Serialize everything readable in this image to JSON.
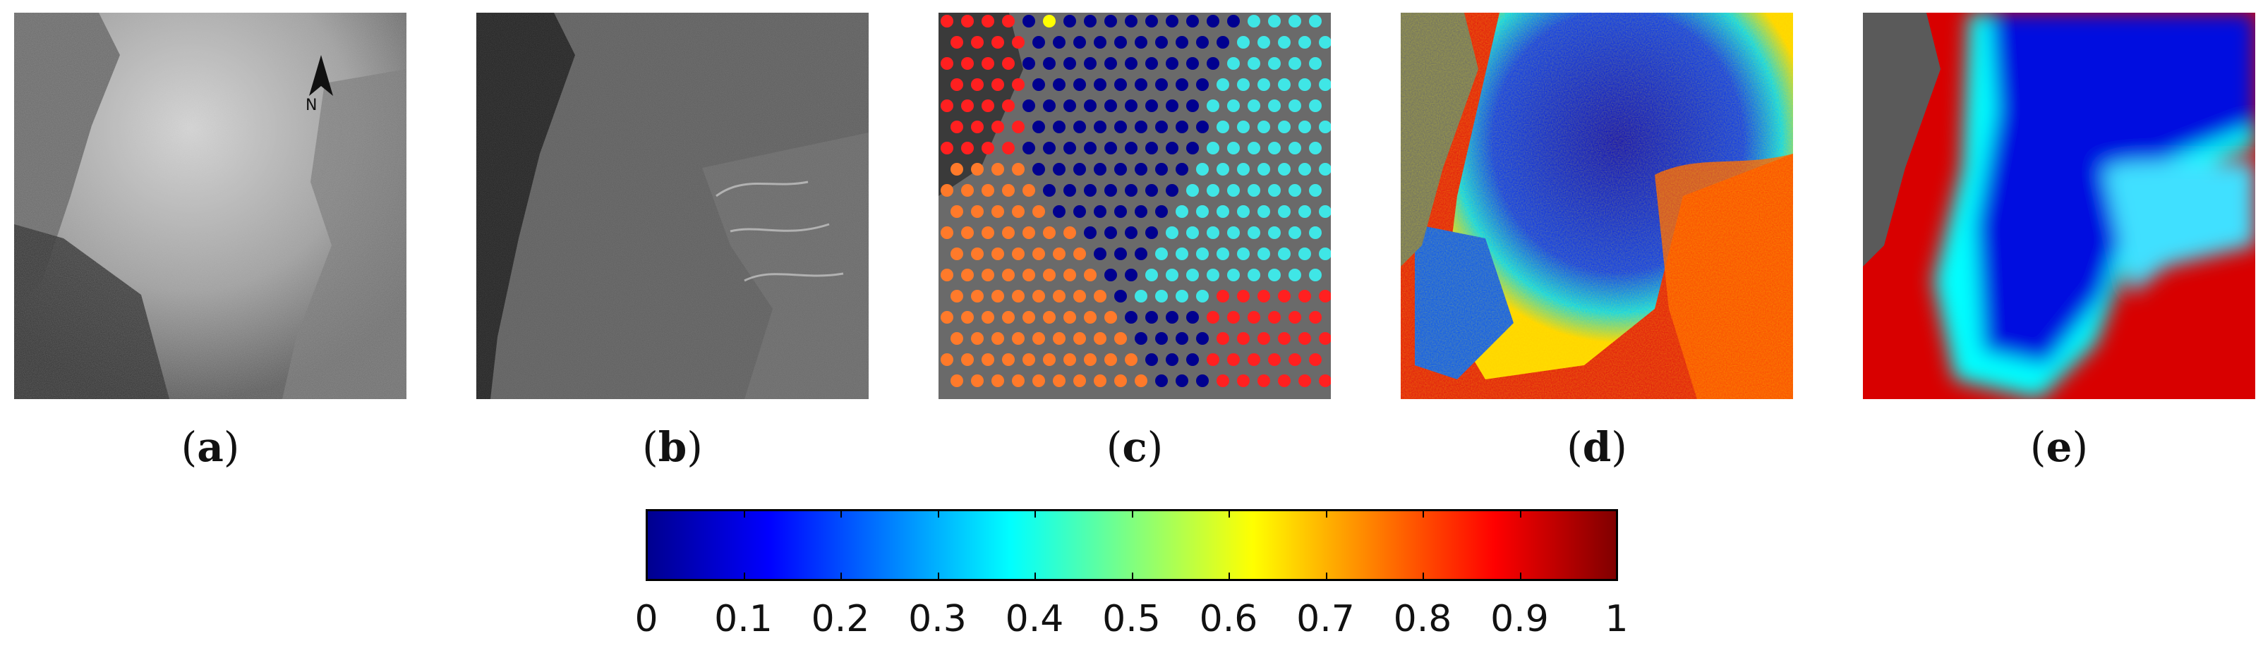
{
  "panels": [
    {
      "id": "a",
      "caption": "a",
      "kind": "sar-intensity",
      "north_arrow": "N"
    },
    {
      "id": "b",
      "caption": "b",
      "kind": "sar-processed"
    },
    {
      "id": "c",
      "caption": "c",
      "kind": "sample-points",
      "point_colors": [
        "#00008f",
        "#3fe6e6",
        "#ff7a2a",
        "#ff2020",
        "#ffff00"
      ]
    },
    {
      "id": "d",
      "caption": "d",
      "kind": "heatmap-noisy"
    },
    {
      "id": "e",
      "caption": "e",
      "kind": "heatmap-smooth"
    }
  ],
  "colorbar": {
    "colormap": "jet",
    "range": [
      0,
      1
    ],
    "ticks": [
      "0",
      "0.1",
      "0.2",
      "0.3",
      "0.4",
      "0.5",
      "0.6",
      "0.7",
      "0.8",
      "0.9",
      "1"
    ],
    "colors": [
      "#00008f",
      "#0000ff",
      "#00ffff",
      "#ffff00",
      "#ff0000",
      "#800000"
    ]
  }
}
